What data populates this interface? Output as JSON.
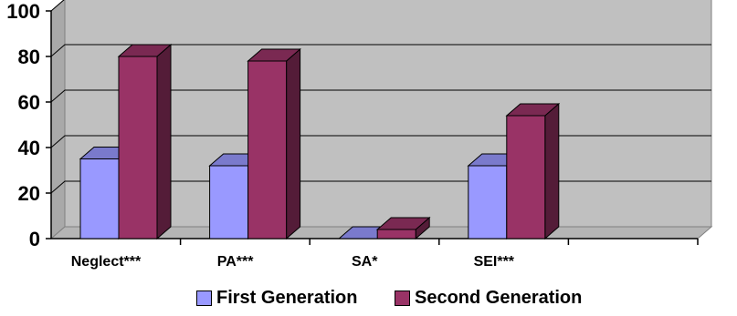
{
  "chart_data": {
    "type": "bar",
    "title": "",
    "xlabel": "",
    "ylabel": "",
    "ylim": [
      0,
      100
    ],
    "yticks": [
      0,
      20,
      40,
      60,
      80,
      100
    ],
    "grid": true,
    "legend_position": "bottom",
    "categories": [
      "Neglect***",
      "PA***",
      "SA*",
      "SEI***"
    ],
    "series": [
      {
        "name": "First Generation",
        "color": "#9999ff",
        "values": [
          35,
          32,
          0,
          32
        ]
      },
      {
        "name": "Second Generation",
        "color": "#993366",
        "values": [
          80,
          78,
          4,
          54
        ]
      }
    ]
  }
}
